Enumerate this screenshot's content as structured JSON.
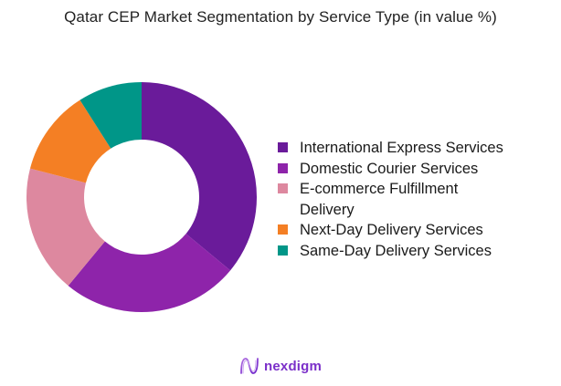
{
  "title": "Qatar CEP Market Segmentation by Service Type (in value %)",
  "chart_data": {
    "type": "pie",
    "subtype": "donut",
    "title": "Qatar CEP Market Segmentation by Service Type (in value %)",
    "categories": [
      "International Express Services",
      "Domestic Courier Services",
      "E-commerce Fulfillment Delivery",
      "Next-Day Delivery Services",
      "Same-Day Delivery Services"
    ],
    "values": [
      36,
      25,
      18,
      12,
      9
    ],
    "colors": [
      "#6a1b9a",
      "#8e24aa",
      "#dd889f",
      "#f47f24",
      "#009688"
    ],
    "legend_position": "right",
    "start_angle": "12 o'clock, clockwise",
    "data_labels": false
  },
  "legend": [
    {
      "label": "International Express Services",
      "color": "#6a1b9a"
    },
    {
      "label": "Domestic Courier Services",
      "color": "#8e24aa"
    },
    {
      "label": "E-commerce Fulfillment Delivery",
      "color": "#dd889f"
    },
    {
      "label": "Next-Day Delivery Services",
      "color": "#f47f24"
    },
    {
      "label": "Same-Day Delivery Services",
      "color": "#009688"
    }
  ],
  "logo": {
    "text": "nexdigm",
    "icon": "nexdigm-wave-icon"
  }
}
